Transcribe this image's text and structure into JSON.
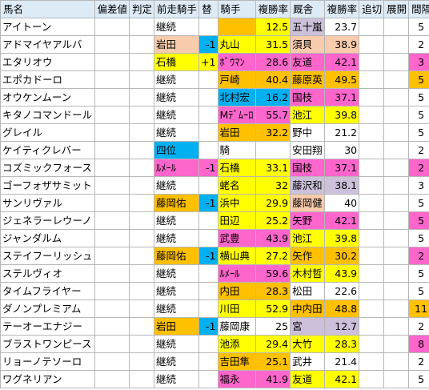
{
  "colors": {
    "header_bg": "#ddebf7",
    "orange": "#f8cbad",
    "blue": "#00b0f0",
    "yellow": "#ffff00",
    "pink": "#ff66cc",
    "lavender": "#ccc0da",
    "gold": "#ffc000",
    "green_blank": "#e2efda"
  },
  "headers": [
    "馬名",
    "偏差値",
    "判定",
    "前走騎手",
    "替",
    "騎手",
    "複勝率",
    "厩舎",
    "複勝率",
    "追切",
    "展開",
    "間隔",
    "↑"
  ],
  "rows": [
    {
      "name": "アイトーン",
      "prev": "継続",
      "chg": "",
      "jockey": "",
      "jrate": "12.5",
      "stable": "五十嵐",
      "srate": "23.7",
      "interval": "5"
    },
    {
      "name": "アドマイヤアルバ",
      "prev": "岩田",
      "chg": "-1",
      "jockey": "丸山",
      "jrate": "31.5",
      "stable": "須貝",
      "srate": "38.9",
      "interval": "2"
    },
    {
      "name": "エタリオウ",
      "prev": "石橋",
      "chg": "+1",
      "jockey": "ﾎﾞｳﾏﾝ",
      "jrate": "28.6",
      "stable": "友道",
      "srate": "42.1",
      "interval": "3"
    },
    {
      "name": "エポカドーロ",
      "prev": "継続",
      "chg": "",
      "jockey": "戸崎",
      "jrate": "40.4",
      "stable": "藤原英",
      "srate": "49.5",
      "interval": "5"
    },
    {
      "name": "オウケンムーン",
      "prev": "継続",
      "chg": "",
      "jockey": "北村宏",
      "jrate": "16.2",
      "stable": "国枝",
      "srate": "37.1",
      "interval": "5"
    },
    {
      "name": "キタノコマンドール",
      "prev": "継続",
      "chg": "",
      "jockey": "Mﾃﾞﾑｰﾛ",
      "jrate": "55.7",
      "stable": "池江",
      "srate": "39.8",
      "interval": "5"
    },
    {
      "name": "グレイル",
      "prev": "継続",
      "chg": "",
      "jockey": "岩田",
      "jrate": "32.2",
      "stable": "野中",
      "srate": "21.2",
      "interval": "5"
    },
    {
      "name": "ケイティクレバー",
      "prev": "四位",
      "chg": "",
      "jockey": "騎",
      "jrate": "",
      "stable": "安田翔",
      "srate": "30",
      "interval": "2"
    },
    {
      "name": "コズミックフォース",
      "prev": "ﾙﾒｰﾙ",
      "chg": "-1",
      "jockey": "石橋",
      "jrate": "33.1",
      "stable": "国枝",
      "srate": "37.1",
      "interval": "2"
    },
    {
      "name": "ゴーフォザサミット",
      "prev": "継続",
      "chg": "",
      "jockey": "蛯名",
      "jrate": "32",
      "stable": "藤沢和",
      "srate": "38.1",
      "interval": "3"
    },
    {
      "name": "サンリヴァル",
      "prev": "藤岡佑",
      "chg": "-1",
      "jockey": "浜中",
      "jrate": "29.9",
      "stable": "藤岡健",
      "srate": "40",
      "interval": "5"
    },
    {
      "name": "ジェネラーレウーノ",
      "prev": "継続",
      "chg": "",
      "jockey": "田辺",
      "jrate": "25.2",
      "stable": "矢野",
      "srate": "42.1",
      "interval": "5"
    },
    {
      "name": "ジャンダルム",
      "prev": "継続",
      "chg": "",
      "jockey": "武豊",
      "jrate": "43.9",
      "stable": "池江",
      "srate": "39.8",
      "interval": "5"
    },
    {
      "name": "ステイフーリッシュ",
      "prev": "藤岡佑",
      "chg": "-1",
      "jockey": "横山典",
      "jrate": "27.2",
      "stable": "矢作",
      "srate": "30.2",
      "interval": "2"
    },
    {
      "name": "ステルヴィオ",
      "prev": "継続",
      "chg": "",
      "jockey": "ﾙﾒｰﾙ",
      "jrate": "59.6",
      "stable": "木村哲",
      "srate": "43.9",
      "interval": "5"
    },
    {
      "name": "タイムフライヤー",
      "prev": "継続",
      "chg": "",
      "jockey": "内田",
      "jrate": "28.3",
      "stable": "松田",
      "srate": "22.6",
      "interval": "5"
    },
    {
      "name": "ダノンプレミアム",
      "prev": "継続",
      "chg": "",
      "jockey": "川田",
      "jrate": "52.9",
      "stable": "中内田",
      "srate": "48.8",
      "interval": "11"
    },
    {
      "name": "テーオーエナジー",
      "prev": "岩田",
      "chg": "-1",
      "jockey": "藤岡康",
      "jrate": "25",
      "stable": "宮",
      "srate": "12.7",
      "interval": "2"
    },
    {
      "name": "ブラストワンピース",
      "prev": "継続",
      "chg": "",
      "jockey": "池添",
      "jrate": "29.4",
      "stable": "大竹",
      "srate": "28.3",
      "interval": "8"
    },
    {
      "name": "リョーノテソーロ",
      "prev": "継続",
      "chg": "",
      "jockey": "吉田隼",
      "jrate": "25.1",
      "stable": "武井",
      "srate": "21.4",
      "interval": "2"
    },
    {
      "name": "ワグネリアン",
      "prev": "継続",
      "chg": "",
      "jockey": "福永",
      "jrate": "41.9",
      "stable": "友道",
      "srate": "42.1",
      "interval": "5"
    }
  ],
  "styles": [
    {
      "prev": "",
      "chg": "",
      "jky": "gold",
      "jrate": "yellow",
      "stb": "lavender",
      "srate": "",
      "int": ""
    },
    {
      "prev": "orange",
      "chg": "blue",
      "jky": "yellow",
      "jrate": "yellow",
      "stb": "orange",
      "srate": "orange",
      "int": ""
    },
    {
      "prev": "yellow",
      "chg": "yellow",
      "jky": "pink",
      "jrate": "pink",
      "stb": "pink",
      "srate": "pink",
      "int": "pink"
    },
    {
      "prev": "",
      "chg": "",
      "jky": "gold",
      "jrate": "gold",
      "stb": "gold",
      "srate": "gold",
      "int": "gold"
    },
    {
      "prev": "",
      "chg": "",
      "jky": "blue",
      "jrate": "blue",
      "stb": "pink",
      "srate": "pink",
      "int": ""
    },
    {
      "prev": "",
      "chg": "",
      "jky": "pink",
      "jrate": "pink",
      "stb": "yellow",
      "srate": "yellow",
      "int": ""
    },
    {
      "prev": "",
      "chg": "",
      "jky": "gold",
      "jrate": "gold",
      "stb": "",
      "srate": "",
      "int": ""
    },
    {
      "prev": "blue",
      "chg": "",
      "jky": "",
      "jrate": "",
      "stb": "",
      "srate": "",
      "int": ""
    },
    {
      "prev": "pink",
      "chg": "pink",
      "jky": "yellow",
      "jrate": "yellow",
      "stb": "pink",
      "srate": "pink",
      "int": "pink"
    },
    {
      "prev": "",
      "chg": "",
      "jky": "yellow",
      "jrate": "yellow",
      "stb": "lavender",
      "srate": "lavender",
      "int": ""
    },
    {
      "prev": "gold",
      "chg": "blue",
      "jky": "yellow",
      "jrate": "yellow",
      "stb": "orange",
      "srate": "",
      "int": ""
    },
    {
      "prev": "",
      "chg": "",
      "jky": "yellow",
      "jrate": "yellow",
      "stb": "pink",
      "srate": "pink",
      "int": "pink"
    },
    {
      "prev": "",
      "chg": "",
      "jky": "pink",
      "jrate": "pink",
      "stb": "yellow",
      "srate": "yellow",
      "int": ""
    },
    {
      "prev": "gold",
      "chg": "blue",
      "jky": "yellow",
      "jrate": "yellow",
      "stb": "gold",
      "srate": "gold",
      "int": "pink"
    },
    {
      "prev": "",
      "chg": "",
      "jky": "pink",
      "jrate": "pink",
      "stb": "yellow",
      "srate": "yellow",
      "int": ""
    },
    {
      "prev": "",
      "chg": "",
      "jky": "gold",
      "jrate": "gold",
      "stb": "",
      "srate": "",
      "int": ""
    },
    {
      "prev": "",
      "chg": "",
      "jky": "yellow",
      "jrate": "yellow",
      "stb": "gold",
      "srate": "gold",
      "int": "gold"
    },
    {
      "prev": "gold",
      "chg": "blue",
      "jky": "",
      "jrate": "",
      "stb": "lavender",
      "srate": "lavender",
      "int": ""
    },
    {
      "prev": "",
      "chg": "",
      "jky": "yellow",
      "jrate": "yellow",
      "stb": "yellow",
      "srate": "yellow",
      "int": "pink"
    },
    {
      "prev": "",
      "chg": "",
      "jky": "gold",
      "jrate": "gold",
      "stb": "",
      "srate": "",
      "int": ""
    },
    {
      "prev": "",
      "chg": "",
      "jky": "pink",
      "jrate": "pink",
      "stb": "yellow",
      "srate": "yellow",
      "int": ""
    }
  ]
}
